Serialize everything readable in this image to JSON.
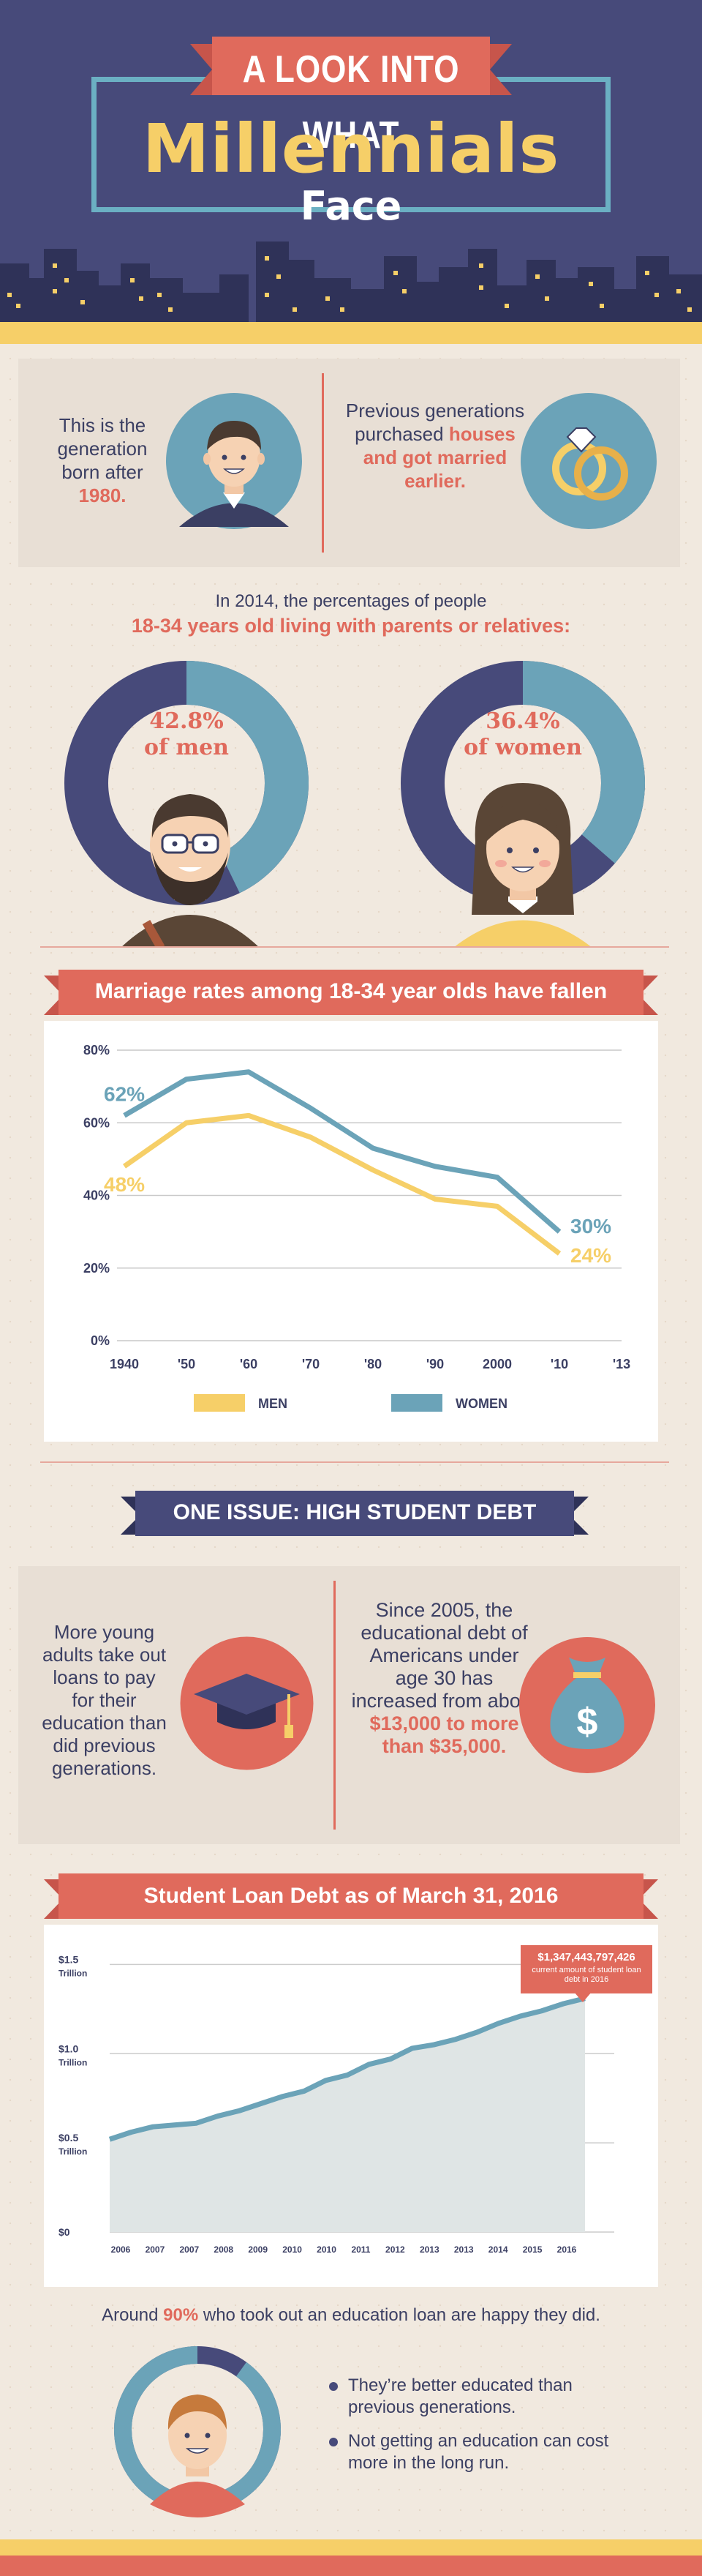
{
  "header": {
    "title_top": "A LOOK INTO WHAT",
    "title_main": "Millennials",
    "title_bottom": "Face"
  },
  "intro": {
    "left_text": "This is the generation born after",
    "left_highlight": "1980.",
    "right_text": "Previous generations purchased",
    "right_highlight": "houses and got married earlier."
  },
  "living": {
    "line1": "In 2014, the percentages of people",
    "line2": "18-34 years old living with parents or relatives:",
    "men_value": "42.8%",
    "men_label": "of men",
    "women_value": "36.4%",
    "women_label": "of women",
    "men_fraction": 0.428,
    "women_fraction": 0.364
  },
  "marriage": {
    "title": "Marriage rates among 18-34 year olds have fallen"
  },
  "marriage_chart": {
    "type": "line",
    "x": [
      "1940",
      "'50",
      "'60",
      "'70",
      "'80",
      "'90",
      "2000",
      "'10",
      "'13"
    ],
    "y_ticks": [
      "0%",
      "20%",
      "40%",
      "60%",
      "80%"
    ],
    "ylim": [
      0,
      80
    ],
    "series": [
      {
        "name": "MEN",
        "color": "#f6cf68",
        "values": [
          48,
          60,
          62,
          56,
          47,
          39,
          37,
          24,
          null
        ],
        "start_label": "48%",
        "end_label": "24%"
      },
      {
        "name": "WOMEN",
        "color": "#6ba3b8",
        "values": [
          62,
          72,
          74,
          64,
          53,
          48,
          45,
          30,
          null
        ],
        "start_label": "62%",
        "end_label": "30%"
      }
    ],
    "legend_placement": "bottom"
  },
  "debt_issue": {
    "title": "ONE ISSUE: HIGH STUDENT DEBT",
    "left_text": "More young adults take out loans to pay for their education than did previous generations.",
    "right_text": "Since 2005, the educational debt of Americans under age 30 has increased from about",
    "right_highlight": "$13,000 to more than $35,000."
  },
  "loan": {
    "title": "Student Loan Debt as of March 31, 2016",
    "callout_value": "$1,347,443,797,426",
    "callout_caption": "current amount of student loan debt in 2016"
  },
  "loan_chart": {
    "type": "area",
    "x_labels": [
      "2006",
      "2007",
      "2007",
      "2008",
      "2009",
      "2010",
      "2010",
      "2011",
      "2012",
      "2013",
      "2013",
      "2014",
      "2015",
      "2016"
    ],
    "y_ticks": [
      {
        "value": "$0",
        "unit": ""
      },
      {
        "value": "$0.5",
        "unit": "Trillion"
      },
      {
        "value": "$1.0",
        "unit": "Trillion"
      },
      {
        "value": "$1.5",
        "unit": "Trillion"
      }
    ],
    "ylim": [
      0,
      1.6
    ],
    "values": [
      0.52,
      0.56,
      0.59,
      0.6,
      0.61,
      0.65,
      0.68,
      0.72,
      0.76,
      0.79,
      0.85,
      0.88,
      0.94,
      0.97,
      1.03,
      1.05,
      1.08,
      1.12,
      1.17,
      1.21,
      1.24,
      1.28,
      1.31
    ],
    "line_color": "#6ba3b8",
    "fill_color": "#dfe5e5"
  },
  "happy": {
    "text_before": "Around",
    "percent": "90%",
    "text_after": "who took out an education loan are happy they did.",
    "fraction": 0.9,
    "bullets": [
      "They’re better educated than previous generations.",
      "Not getting an education can cost more in the long run."
    ]
  }
}
